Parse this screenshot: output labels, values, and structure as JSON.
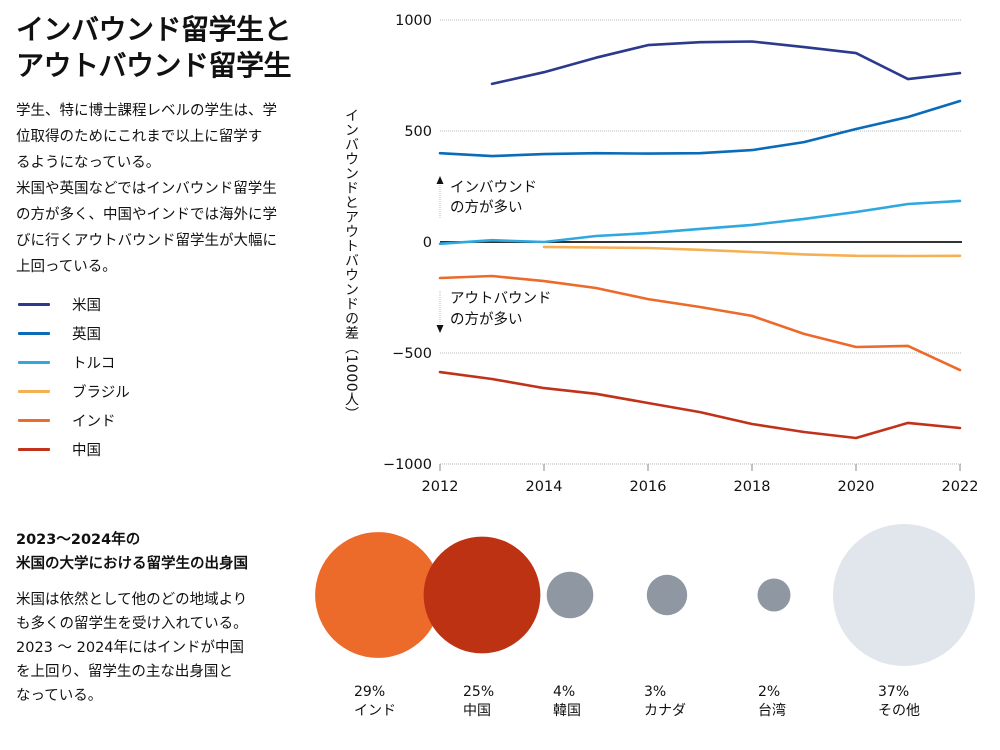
{
  "header": {
    "title_line1": "インバウンド留学生と",
    "title_line2": "アウトバウンド留学生"
  },
  "intro": {
    "line1": "学生、特に博士課程レベルの学生は、学",
    "line2": "位取得のためにこれまで以上に留学す",
    "line3": "るようになっている。",
    "line4": "米国や英国などではインバウンド留学生",
    "line5": "の方が多く、中国やインドでは海外に学",
    "line6": "びに行くアウトバウンド留学生が大幅に",
    "line7": "上回っている。"
  },
  "legend": [
    {
      "label": "米国",
      "color": "#2b3a8c"
    },
    {
      "label": "英国",
      "color": "#0a6bb8"
    },
    {
      "label": "トルコ",
      "color": "#2fa8e0"
    },
    {
      "label": "ブラジル",
      "color": "#f5b055"
    },
    {
      "label": "インド",
      "color": "#ec6a2a"
    },
    {
      "label": "中国",
      "color": "#c0321a"
    }
  ],
  "chart_data": [
    {
      "type": "line",
      "title": "インバウンド留学生とアウトバウンド留学生",
      "xlabel": "",
      "ylabel": "インバウンドとアウトバウンドの差（1000人）",
      "x": [
        2012,
        2013,
        2014,
        2015,
        2016,
        2017,
        2018,
        2019,
        2020,
        2021,
        2022
      ],
      "xticks": [
        2012,
        2014,
        2016,
        2018,
        2020,
        2022
      ],
      "xtick_labels": [
        "2012",
        "2014",
        "2016",
        "2018",
        "2020",
        "2022"
      ],
      "yticks": [
        1000,
        500,
        0,
        -500,
        -1000
      ],
      "ytick_labels": [
        "1000",
        "500",
        "0",
        "−500",
        "−1000"
      ],
      "xlim": [
        2012,
        2022
      ],
      "ylim": [
        -1000,
        1000
      ],
      "grid": true,
      "legend_position": "left",
      "annotations": [
        {
          "text_line1": "インバウンド",
          "text_line2": "の方が多い",
          "direction": "up"
        },
        {
          "text_line1": "アウトバウンド",
          "text_line2": "の方が多い",
          "direction": "down"
        }
      ],
      "series": [
        {
          "name": "米国",
          "color": "#2b3a8c",
          "values": [
            null,
            712,
            765,
            830,
            887,
            900,
            903,
            878,
            851,
            734,
            761
          ]
        },
        {
          "name": "英国",
          "color": "#0a6bb8",
          "values": [
            400,
            387,
            396,
            400,
            398,
            400,
            414,
            450,
            509,
            563,
            635
          ]
        },
        {
          "name": "トルコ",
          "color": "#2fa8e0",
          "values": [
            -8,
            8,
            0,
            27,
            40,
            59,
            77,
            104,
            135,
            171,
            185
          ]
        },
        {
          "name": "ブラジル",
          "color": "#f5b055",
          "values": [
            null,
            null,
            -22,
            -25,
            -27,
            -35,
            -45,
            -56,
            -62,
            -63,
            -62
          ]
        },
        {
          "name": "インド",
          "color": "#ec6a2a",
          "values": [
            -162,
            -153,
            -176,
            -207,
            -257,
            -293,
            -333,
            -414,
            -473,
            -468,
            -577
          ]
        },
        {
          "name": "中国",
          "color": "#c0321a",
          "values": [
            -586,
            -617,
            -658,
            -684,
            -725,
            -766,
            -820,
            -856,
            -883,
            -815,
            -838
          ]
        }
      ]
    },
    {
      "type": "bubble",
      "title": "2023〜2024年の米国の大学における留学生の出身国",
      "categories": [
        "インド",
        "中国",
        "韓国",
        "カナダ",
        "台湾",
        "その他"
      ],
      "values": [
        29,
        25,
        4,
        3,
        2,
        37
      ],
      "value_labels": [
        "29%",
        "25%",
        "4%",
        "3%",
        "2%",
        "37%"
      ],
      "colors": [
        "#ec6a2a",
        "#be3214",
        "#8f97a3",
        "#8f97a3",
        "#8f97a3",
        "#e1e5ec"
      ],
      "unit": "%"
    }
  ],
  "section2": {
    "title_line1": "2023〜2024年の",
    "title_line2": "米国の大学における留学生の出身国",
    "text_line1": "米国は依然として他のどの地域より",
    "text_line2": "も多くの留学生を受け入れている。",
    "text_line3": "2023 〜 2024年にはインドが中国",
    "text_line4": "を上回り、留学生の主な出身国と",
    "text_line5": "なっている。"
  }
}
